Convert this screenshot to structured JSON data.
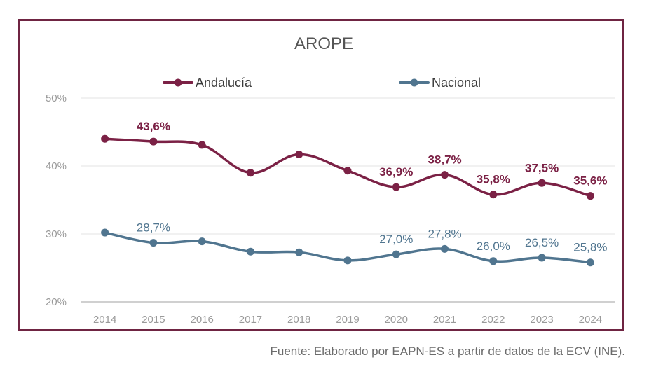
{
  "chart_data": {
    "type": "line",
    "title": "AROPE",
    "x": [
      "2014",
      "2015",
      "2016",
      "2017",
      "2018",
      "2019",
      "2020",
      "2021",
      "2022",
      "2023",
      "2024"
    ],
    "ylim": [
      20,
      50
    ],
    "yticks": [
      20,
      30,
      40,
      50
    ],
    "ytick_labels": [
      "20%",
      "30%",
      "40%",
      "50%"
    ],
    "series": [
      {
        "name": "Andalucía",
        "color": "#7b2145",
        "values": [
          44.0,
          43.6,
          43.1,
          39.0,
          41.7,
          39.3,
          36.9,
          38.7,
          35.8,
          37.5,
          35.6
        ],
        "labels": [
          "",
          "43,6%",
          "",
          "",
          "",
          "",
          "36,9%",
          "38,7%",
          "35,8%",
          "37,5%",
          "35,6%"
        ]
      },
      {
        "name": "Nacional",
        "color": "#50758f",
        "values": [
          30.2,
          28.7,
          28.9,
          27.4,
          27.3,
          26.1,
          27.0,
          27.8,
          26.0,
          26.5,
          25.8
        ],
        "labels": [
          "",
          "28,7%",
          "",
          "",
          "",
          "",
          "27,0%",
          "27,8%",
          "26,0%",
          "26,5%",
          "25,8%"
        ]
      }
    ],
    "legend": "top",
    "grid": true
  },
  "source": "Fuente: Elaborado por EAPN-ES a partir de datos de la ECV (INE)."
}
